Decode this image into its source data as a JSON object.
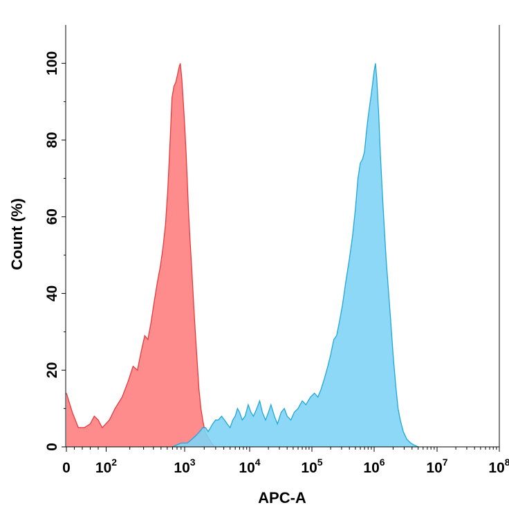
{
  "chart_data": {
    "type": "area",
    "title": "",
    "xlabel": "APC-A",
    "ylabel": "Count (%)",
    "xscale": "biexponential (log above ~10^2)",
    "xlim": [
      0,
      100000000
    ],
    "ylim": [
      0,
      110
    ],
    "grid": false,
    "legend": "none",
    "x_tick_labels": [
      {
        "value": 0,
        "base": "0",
        "exp": ""
      },
      {
        "value": 100,
        "base": "10",
        "exp": "2"
      },
      {
        "value": 1000,
        "base": "10",
        "exp": "3"
      },
      {
        "value": 10000,
        "base": "10",
        "exp": "4"
      },
      {
        "value": 100000,
        "base": "10",
        "exp": "5"
      },
      {
        "value": 1000000,
        "base": "10",
        "exp": "6"
      },
      {
        "value": 10000000,
        "base": "10",
        "exp": "7"
      },
      {
        "value": 100000000,
        "base": "10",
        "exp": "8"
      }
    ],
    "y_ticks": [
      0,
      20,
      40,
      60,
      80,
      100
    ],
    "series": [
      {
        "color": "#e8383d",
        "fill": "#ff7f7f",
        "points": [
          [
            0,
            14
          ],
          [
            15,
            9
          ],
          [
            30,
            5
          ],
          [
            45,
            5
          ],
          [
            60,
            6
          ],
          [
            70,
            8
          ],
          [
            80,
            7
          ],
          [
            90,
            5
          ],
          [
            110,
            7
          ],
          [
            130,
            10
          ],
          [
            160,
            13
          ],
          [
            190,
            17
          ],
          [
            220,
            21
          ],
          [
            250,
            20
          ],
          [
            280,
            25
          ],
          [
            310,
            29
          ],
          [
            340,
            28
          ],
          [
            370,
            32
          ],
          [
            410,
            38
          ],
          [
            450,
            43
          ],
          [
            490,
            47
          ],
          [
            530,
            52
          ],
          [
            570,
            58
          ],
          [
            610,
            67
          ],
          [
            650,
            79
          ],
          [
            690,
            91
          ],
          [
            730,
            94
          ],
          [
            770,
            95
          ],
          [
            810,
            97
          ],
          [
            850,
            99
          ],
          [
            880,
            100
          ],
          [
            920,
            96
          ],
          [
            960,
            90
          ],
          [
            1000,
            84
          ],
          [
            1050,
            77
          ],
          [
            1100,
            69
          ],
          [
            1150,
            61
          ],
          [
            1220,
            53
          ],
          [
            1300,
            45
          ],
          [
            1380,
            37
          ],
          [
            1470,
            29
          ],
          [
            1560,
            22
          ],
          [
            1660,
            15
          ],
          [
            1780,
            10
          ],
          [
            1900,
            7
          ],
          [
            2050,
            4
          ],
          [
            2200,
            3
          ],
          [
            2400,
            2
          ],
          [
            2600,
            1
          ],
          [
            2900,
            0
          ]
        ]
      },
      {
        "color": "#1ea7d8",
        "fill": "#7fd4f5",
        "points": [
          [
            700,
            0
          ],
          [
            900,
            1
          ],
          [
            1100,
            1
          ],
          [
            1300,
            2
          ],
          [
            1500,
            3
          ],
          [
            1700,
            4
          ],
          [
            1900,
            5
          ],
          [
            2100,
            5
          ],
          [
            2300,
            4
          ],
          [
            2500,
            5
          ],
          [
            2700,
            6
          ],
          [
            3000,
            7
          ],
          [
            3300,
            7
          ],
          [
            3700,
            8
          ],
          [
            4100,
            7
          ],
          [
            4500,
            6
          ],
          [
            5000,
            5
          ],
          [
            5500,
            7
          ],
          [
            6000,
            8
          ],
          [
            6500,
            10
          ],
          [
            7000,
            9
          ],
          [
            7700,
            7
          ],
          [
            8500,
            8
          ],
          [
            9500,
            11
          ],
          [
            10500,
            9
          ],
          [
            11500,
            8
          ],
          [
            13000,
            10
          ],
          [
            14500,
            12
          ],
          [
            16000,
            9
          ],
          [
            18000,
            7
          ],
          [
            20000,
            9
          ],
          [
            22000,
            11
          ],
          [
            25000,
            8
          ],
          [
            28000,
            6
          ],
          [
            32000,
            9
          ],
          [
            36000,
            10
          ],
          [
            40000,
            8
          ],
          [
            46000,
            7
          ],
          [
            52000,
            9
          ],
          [
            60000,
            10
          ],
          [
            70000,
            12
          ],
          [
            80000,
            11
          ],
          [
            95000,
            13
          ],
          [
            110000,
            14
          ],
          [
            125000,
            13
          ],
          [
            140000,
            15
          ],
          [
            160000,
            18
          ],
          [
            180000,
            21
          ],
          [
            200000,
            24
          ],
          [
            225000,
            28
          ],
          [
            250000,
            29
          ],
          [
            280000,
            33
          ],
          [
            310000,
            37
          ],
          [
            350000,
            43
          ],
          [
            400000,
            49
          ],
          [
            450000,
            55
          ],
          [
            500000,
            62
          ],
          [
            550000,
            70
          ],
          [
            600000,
            74
          ],
          [
            650000,
            75
          ],
          [
            700000,
            77
          ],
          [
            750000,
            82
          ],
          [
            800000,
            86
          ],
          [
            850000,
            89
          ],
          [
            900000,
            92
          ],
          [
            950000,
            95
          ],
          [
            1000000,
            98
          ],
          [
            1050000,
            100
          ],
          [
            1100000,
            96
          ],
          [
            1180000,
            87
          ],
          [
            1260000,
            76
          ],
          [
            1350000,
            66
          ],
          [
            1450000,
            57
          ],
          [
            1550000,
            49
          ],
          [
            1700000,
            40
          ],
          [
            1850000,
            32
          ],
          [
            2000000,
            24
          ],
          [
            2200000,
            16
          ],
          [
            2400000,
            10
          ],
          [
            2600000,
            7
          ],
          [
            2900000,
            4
          ],
          [
            3300000,
            2
          ],
          [
            3800000,
            1
          ],
          [
            4300000,
            0.5
          ],
          [
            5000000,
            0
          ]
        ]
      }
    ]
  }
}
